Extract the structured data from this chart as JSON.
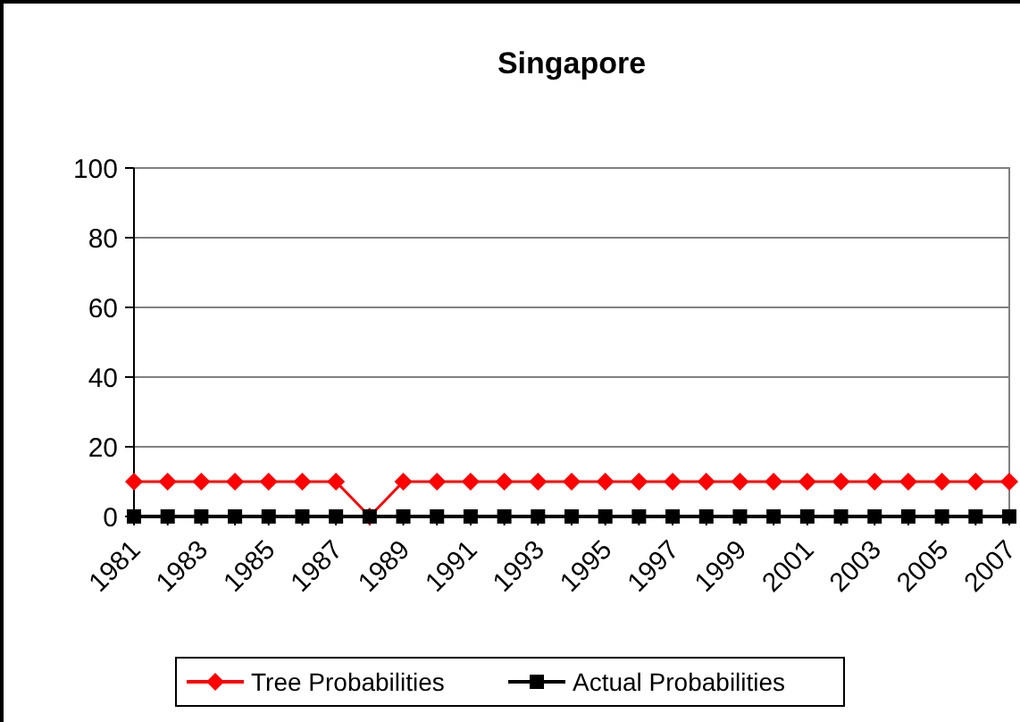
{
  "chart_data": {
    "type": "line",
    "title": "Singapore",
    "categories": [
      "1981",
      null,
      "1983",
      null,
      "1985",
      null,
      "1987",
      null,
      "1989",
      null,
      "1991",
      null,
      "1993",
      null,
      "1995",
      null,
      "1997",
      null,
      "1999",
      null,
      "2001",
      null,
      "2003",
      null,
      "2005",
      null,
      "2007"
    ],
    "series": [
      {
        "name": "Tree Probabilities",
        "color": "#ff0000",
        "marker": "diamond",
        "values": [
          10,
          10,
          10,
          10,
          10,
          10,
          10,
          0,
          10,
          10,
          10,
          10,
          10,
          10,
          10,
          10,
          10,
          10,
          10,
          10,
          10,
          10,
          10,
          10,
          10,
          10,
          10
        ]
      },
      {
        "name": "Actual Probabilities",
        "color": "#000000",
        "marker": "square",
        "values": [
          0,
          0,
          0,
          0,
          0,
          0,
          0,
          0,
          0,
          0,
          0,
          0,
          0,
          0,
          0,
          0,
          0,
          0,
          0,
          0,
          0,
          0,
          0,
          0,
          0,
          0,
          0
        ]
      }
    ],
    "ylim": [
      0,
      100
    ],
    "yticks": [
      0,
      20,
      40,
      60,
      80,
      100
    ],
    "grid": "y",
    "legend": "bottom"
  }
}
